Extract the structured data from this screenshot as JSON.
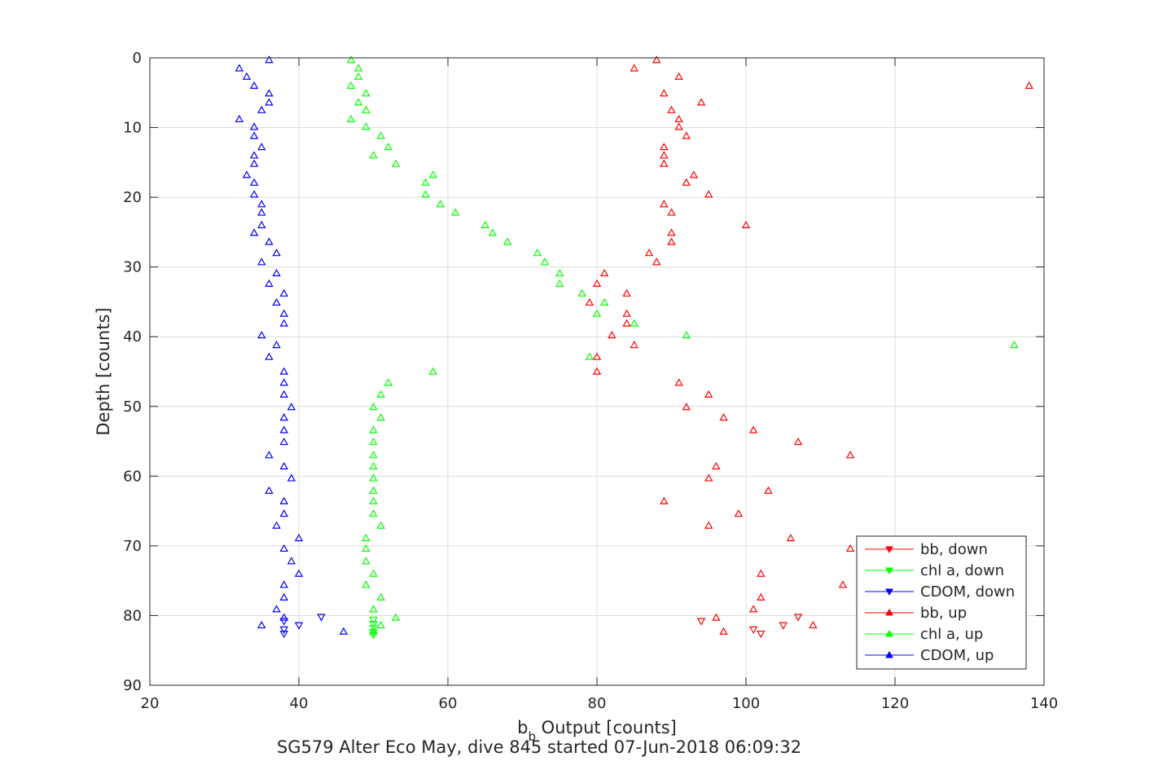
{
  "chart_data": {
    "type": "scatter",
    "title": "",
    "xlabel_main": "b",
    "xlabel_sub": "b",
    "xlabel_rest": " Output [counts]",
    "ylabel": "Depth [counts]",
    "caption": "SG579 Alter Eco May, dive 845 started 07-Jun-2018 06:09:32",
    "xlim": [
      20,
      140
    ],
    "ylim": [
      0,
      90
    ],
    "y_reversed": true,
    "grid": true,
    "xticks": [
      20,
      40,
      60,
      80,
      100,
      120,
      140
    ],
    "yticks": [
      0,
      10,
      20,
      30,
      40,
      50,
      60,
      70,
      80,
      90
    ],
    "legend_position": "bottom-right",
    "legend": [
      "bb, down",
      "chl a, down",
      "CDOM, down",
      "bb, up",
      "chl a, up",
      "CDOM, up"
    ],
    "series": [
      {
        "name": "bb, down",
        "color": "#ff0000",
        "marker": "triangle-down",
        "points": [
          [
            94,
            80.8
          ],
          [
            101,
            82.0
          ],
          [
            102,
            82.6
          ],
          [
            105,
            81.4
          ],
          [
            107,
            80.2
          ]
        ]
      },
      {
        "name": "chl a, down",
        "color": "#00ff00",
        "marker": "triangle-down",
        "points": [
          [
            50,
            80.6
          ],
          [
            50,
            81.2
          ],
          [
            50,
            81.8
          ],
          [
            50,
            82.4
          ],
          [
            50,
            82.8
          ]
        ]
      },
      {
        "name": "CDOM, down",
        "color": "#0000ff",
        "marker": "triangle-down",
        "points": [
          [
            38,
            80.8
          ],
          [
            38,
            82.0
          ],
          [
            38,
            82.6
          ],
          [
            40,
            81.4
          ],
          [
            43,
            80.2
          ]
        ]
      },
      {
        "name": "bb, up",
        "color": "#ff0000",
        "marker": "triangle-up",
        "points": [
          [
            88,
            0.3
          ],
          [
            85,
            1.5
          ],
          [
            91,
            2.7
          ],
          [
            138,
            4.0
          ],
          [
            89,
            5.1
          ],
          [
            94,
            6.4
          ],
          [
            90,
            7.5
          ],
          [
            91,
            8.8
          ],
          [
            91,
            9.9
          ],
          [
            92,
            11.2
          ],
          [
            89,
            12.8
          ],
          [
            89,
            14.0
          ],
          [
            89,
            15.2
          ],
          [
            93,
            16.8
          ],
          [
            92,
            17.9
          ],
          [
            95,
            19.6
          ],
          [
            89,
            21.0
          ],
          [
            90,
            22.2
          ],
          [
            100,
            24.0
          ],
          [
            90,
            25.1
          ],
          [
            90,
            26.4
          ],
          [
            87,
            28.0
          ],
          [
            88,
            29.3
          ],
          [
            81,
            30.9
          ],
          [
            80,
            32.4
          ],
          [
            84,
            33.8
          ],
          [
            79,
            35.1
          ],
          [
            84,
            36.7
          ],
          [
            84,
            38.1
          ],
          [
            82,
            39.8
          ],
          [
            85,
            41.2
          ],
          [
            80,
            42.9
          ],
          [
            80,
            45.0
          ],
          [
            91,
            46.6
          ],
          [
            95,
            48.3
          ],
          [
            92,
            50.1
          ],
          [
            97,
            51.6
          ],
          [
            101,
            53.4
          ],
          [
            107,
            55.1
          ],
          [
            114,
            57.0
          ],
          [
            96,
            58.6
          ],
          [
            95,
            60.3
          ],
          [
            103,
            62.1
          ],
          [
            89,
            63.6
          ],
          [
            99,
            65.4
          ],
          [
            95,
            67.1
          ],
          [
            106,
            68.9
          ],
          [
            114,
            70.4
          ],
          [
            102,
            74.0
          ],
          [
            113,
            75.6
          ],
          [
            102,
            77.4
          ],
          [
            101,
            79.1
          ],
          [
            96,
            80.3
          ],
          [
            109,
            81.4
          ],
          [
            97,
            82.3
          ]
        ]
      },
      {
        "name": "chl a, up",
        "color": "#00ff00",
        "marker": "triangle-up",
        "points": [
          [
            47,
            0.3
          ],
          [
            48,
            1.5
          ],
          [
            48,
            2.7
          ],
          [
            47,
            4.0
          ],
          [
            49,
            5.1
          ],
          [
            48,
            6.4
          ],
          [
            49,
            7.5
          ],
          [
            47,
            8.8
          ],
          [
            49,
            9.9
          ],
          [
            51,
            11.2
          ],
          [
            52,
            12.8
          ],
          [
            50,
            14.0
          ],
          [
            53,
            15.2
          ],
          [
            58,
            16.8
          ],
          [
            57,
            17.9
          ],
          [
            57,
            19.6
          ],
          [
            59,
            21.0
          ],
          [
            61,
            22.2
          ],
          [
            65,
            24.0
          ],
          [
            66,
            25.1
          ],
          [
            68,
            26.4
          ],
          [
            72,
            28.0
          ],
          [
            73,
            29.3
          ],
          [
            75,
            30.9
          ],
          [
            75,
            32.4
          ],
          [
            78,
            33.8
          ],
          [
            81,
            35.1
          ],
          [
            80,
            36.7
          ],
          [
            85,
            38.1
          ],
          [
            92,
            39.8
          ],
          [
            136,
            41.2
          ],
          [
            79,
            42.9
          ],
          [
            58,
            45.0
          ],
          [
            52,
            46.6
          ],
          [
            51,
            48.3
          ],
          [
            50,
            50.1
          ],
          [
            51,
            51.6
          ],
          [
            50,
            53.4
          ],
          [
            50,
            55.1
          ],
          [
            50,
            57.0
          ],
          [
            50,
            58.6
          ],
          [
            50,
            60.3
          ],
          [
            50,
            62.1
          ],
          [
            50,
            63.6
          ],
          [
            50,
            65.4
          ],
          [
            51,
            67.1
          ],
          [
            49,
            68.9
          ],
          [
            49,
            70.4
          ],
          [
            49,
            72.2
          ],
          [
            50,
            74.0
          ],
          [
            49,
            75.6
          ],
          [
            51,
            77.4
          ],
          [
            50,
            79.1
          ],
          [
            53,
            80.3
          ],
          [
            51,
            81.4
          ],
          [
            50,
            82.3
          ]
        ]
      },
      {
        "name": "CDOM, up",
        "color": "#0000ff",
        "marker": "triangle-up",
        "points": [
          [
            36,
            0.3
          ],
          [
            32,
            1.5
          ],
          [
            33,
            2.7
          ],
          [
            34,
            4.0
          ],
          [
            36,
            5.1
          ],
          [
            36,
            6.4
          ],
          [
            35,
            7.5
          ],
          [
            32,
            8.8
          ],
          [
            34,
            9.9
          ],
          [
            34,
            11.2
          ],
          [
            35,
            12.8
          ],
          [
            34,
            14.0
          ],
          [
            34,
            15.2
          ],
          [
            33,
            16.8
          ],
          [
            34,
            17.9
          ],
          [
            34,
            19.6
          ],
          [
            35,
            21.0
          ],
          [
            35,
            22.2
          ],
          [
            35,
            24.0
          ],
          [
            34,
            25.1
          ],
          [
            36,
            26.4
          ],
          [
            37,
            28.0
          ],
          [
            35,
            29.3
          ],
          [
            37,
            30.9
          ],
          [
            36,
            32.4
          ],
          [
            38,
            33.8
          ],
          [
            37,
            35.1
          ],
          [
            38,
            36.7
          ],
          [
            38,
            38.1
          ],
          [
            35,
            39.8
          ],
          [
            37,
            41.2
          ],
          [
            36,
            42.9
          ],
          [
            38,
            45.0
          ],
          [
            38,
            46.6
          ],
          [
            38,
            48.3
          ],
          [
            39,
            50.1
          ],
          [
            38,
            51.6
          ],
          [
            38,
            53.4
          ],
          [
            38,
            55.1
          ],
          [
            36,
            57.0
          ],
          [
            38,
            58.6
          ],
          [
            39,
            60.3
          ],
          [
            36,
            62.1
          ],
          [
            38,
            63.6
          ],
          [
            38,
            65.4
          ],
          [
            37,
            67.1
          ],
          [
            40,
            68.9
          ],
          [
            38,
            70.4
          ],
          [
            39,
            72.2
          ],
          [
            40,
            74.0
          ],
          [
            38,
            75.6
          ],
          [
            38,
            77.4
          ],
          [
            37,
            79.1
          ],
          [
            38,
            80.3
          ],
          [
            35,
            81.4
          ],
          [
            46,
            82.3
          ]
        ]
      }
    ]
  }
}
